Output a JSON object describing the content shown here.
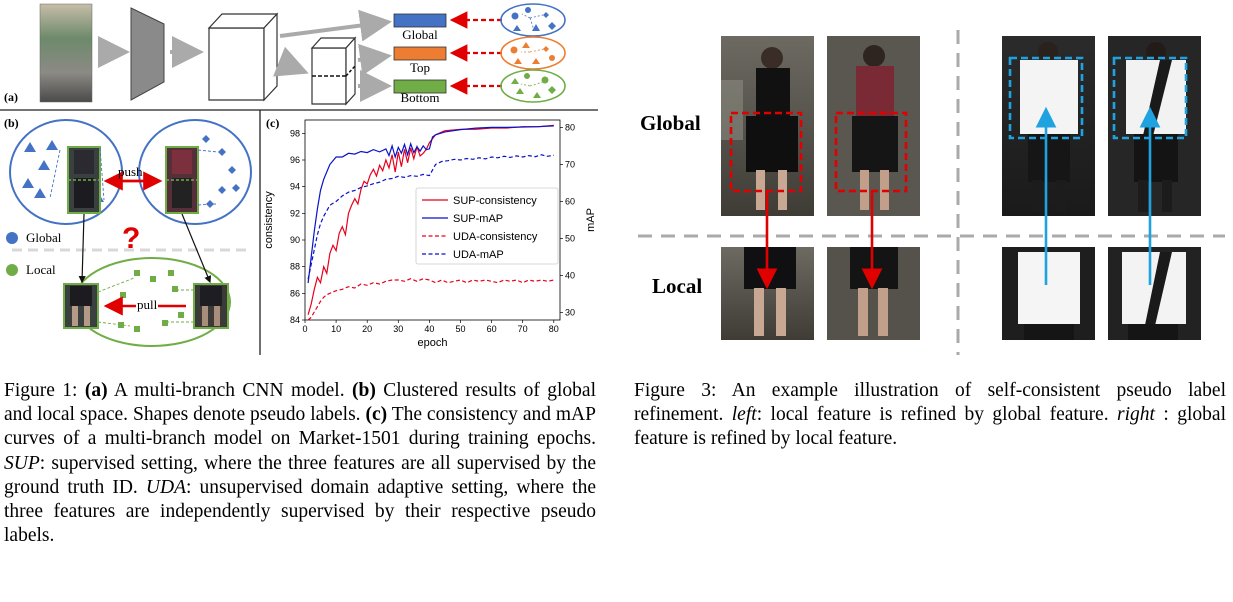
{
  "figure1": {
    "panel_a": {
      "tag": "(a)",
      "branches": [
        {
          "label": "Global",
          "color": "#4472c4"
        },
        {
          "label": "Top",
          "color": "#ed7d31"
        },
        {
          "label": "Bottom",
          "color": "#70ad47"
        }
      ]
    },
    "panel_b": {
      "tag": "(b)",
      "push_label": "push",
      "pull_label": "pull",
      "question_mark": "?",
      "legend": [
        {
          "label": "Global",
          "color": "#4472c4"
        },
        {
          "label": "Local",
          "color": "#70ad47"
        }
      ]
    },
    "panel_c": {
      "tag": "(c)"
    },
    "caption": {
      "lead": "Figure 1: ",
      "a_tag": "(a)",
      "a_text": " A multi-branch CNN model. ",
      "b_tag": "(b)",
      "b_text": " Clustered results of global and local space. Shapes denote pseudo labels. ",
      "c_tag": "(c)",
      "c_text": " The consistency and mAP curves of a multi-branch model on Market-1501 during training epochs. ",
      "sup_term": "SUP",
      "sup_text": ": supervised setting, where the three features are all supervised by the ground truth ID. ",
      "uda_term": "UDA",
      "uda_text": ": unsupervised domain adaptive setting, where the three features are independently supervised by their respective pseudo labels."
    }
  },
  "chart_data": {
    "type": "line",
    "xlabel": "epoch",
    "ylabel": "consistency",
    "y2label": "mAP",
    "xlim": [
      0,
      82
    ],
    "ylim": [
      84,
      99
    ],
    "y2lim": [
      28,
      82
    ],
    "xticks": [
      0,
      10,
      20,
      30,
      40,
      50,
      60,
      70,
      80
    ],
    "yticks": [
      84,
      86,
      88,
      90,
      92,
      94,
      96,
      98
    ],
    "y2ticks": [
      30,
      40,
      50,
      60,
      70,
      80
    ],
    "legend_position": "center-right",
    "grid": false,
    "series": [
      {
        "name": "SUP-consistency",
        "axis": "left",
        "color": "#e8001c",
        "dash": "solid",
        "x": [
          1,
          2,
          3,
          4,
          5,
          6,
          7,
          8,
          9,
          10,
          11,
          12,
          13,
          14,
          15,
          16,
          17,
          18,
          19,
          20,
          21,
          22,
          23,
          24,
          25,
          26,
          27,
          28,
          29,
          30,
          31,
          32,
          33,
          34,
          35,
          36,
          37,
          38,
          39,
          40,
          42,
          45,
          50,
          55,
          60,
          65,
          70,
          75,
          80
        ],
        "y": [
          84.4,
          85.2,
          86.3,
          87.2,
          86.8,
          88.0,
          87.5,
          89.0,
          89.6,
          89.2,
          90.5,
          91.0,
          90.4,
          92.0,
          92.6,
          93.1,
          92.7,
          93.8,
          94.4,
          94.2,
          94.9,
          95.3,
          94.8,
          95.6,
          95.2,
          96.0,
          95.4,
          96.4,
          95.1,
          96.6,
          95.5,
          96.8,
          95.8,
          96.9,
          96.1,
          97.0,
          96.3,
          96.5,
          96.8,
          97.3,
          97.9,
          98.2,
          98.3,
          98.3,
          98.4,
          98.4,
          98.5,
          98.5,
          98.6
        ]
      },
      {
        "name": "SUP-mAP",
        "axis": "right",
        "color": "#0a12c8",
        "dash": "solid",
        "x": [
          1,
          2,
          3,
          4,
          5,
          6,
          7,
          8,
          9,
          10,
          12,
          14,
          16,
          18,
          20,
          22,
          24,
          26,
          27,
          28,
          29,
          30,
          31,
          32,
          33,
          34,
          35,
          36,
          37,
          38,
          39,
          40,
          41,
          42,
          45,
          50,
          55,
          60,
          65,
          70,
          75,
          80
        ],
        "y": [
          38.0,
          45.0,
          52.0,
          58.0,
          63.0,
          66.0,
          68.0,
          70.0,
          71.0,
          72.0,
          72.0,
          73.0,
          72.8,
          73.5,
          73.2,
          74.0,
          73.4,
          74.2,
          72.4,
          75.0,
          72.0,
          74.6,
          73.0,
          75.4,
          72.6,
          75.6,
          73.2,
          74.8,
          73.6,
          75.0,
          74.0,
          74.2,
          77.4,
          78.0,
          78.8,
          79.4,
          79.8,
          80.0,
          80.0,
          80.1,
          80.2,
          80.4
        ]
      },
      {
        "name": "UDA-consistency",
        "axis": "left",
        "color": "#e8001c",
        "dash": "dashed",
        "x": [
          1,
          2,
          3,
          4,
          5,
          6,
          7,
          8,
          9,
          10,
          12,
          14,
          16,
          18,
          20,
          22,
          24,
          26,
          28,
          30,
          32,
          34,
          36,
          38,
          40,
          42,
          44,
          46,
          48,
          50,
          52,
          54,
          56,
          58,
          60,
          62,
          64,
          66,
          68,
          70,
          72,
          74,
          76,
          78,
          80
        ],
        "y": [
          84.0,
          84.2,
          84.6,
          85.0,
          85.4,
          85.7,
          85.9,
          86.0,
          86.1,
          86.2,
          86.3,
          86.5,
          86.4,
          86.7,
          86.6,
          86.8,
          86.7,
          86.9,
          87.0,
          87.0,
          86.9,
          87.1,
          86.9,
          87.1,
          87.0,
          86.8,
          87.0,
          86.8,
          86.9,
          87.0,
          86.8,
          87.0,
          86.9,
          87.0,
          86.9,
          86.8,
          87.0,
          86.9,
          87.0,
          86.8,
          87.0,
          86.9,
          87.0,
          86.9,
          87.0
        ]
      },
      {
        "name": "UDA-mAP",
        "axis": "right",
        "color": "#0a12c8",
        "dash": "dashed",
        "x": [
          1,
          2,
          3,
          4,
          5,
          6,
          7,
          8,
          9,
          10,
          12,
          14,
          16,
          18,
          20,
          22,
          24,
          26,
          28,
          30,
          32,
          34,
          36,
          38,
          40,
          42,
          44,
          46,
          48,
          50,
          52,
          54,
          56,
          58,
          60,
          62,
          64,
          66,
          68,
          70,
          72,
          74,
          76,
          78,
          80
        ],
        "y": [
          39.0,
          43.0,
          47.0,
          51.0,
          54.0,
          56.0,
          57.5,
          59.0,
          59.5,
          60.0,
          61.5,
          62.5,
          63.0,
          63.8,
          64.2,
          64.8,
          65.2,
          66.0,
          66.2,
          66.8,
          66.5,
          67.0,
          66.8,
          67.3,
          67.0,
          70.0,
          70.8,
          71.0,
          71.4,
          71.2,
          71.6,
          71.4,
          71.8,
          71.5,
          72.0,
          71.8,
          72.2,
          71.9,
          72.3,
          72.0,
          72.4,
          72.1,
          72.6,
          72.2,
          72.5
        ]
      }
    ]
  },
  "figure3": {
    "row_labels": {
      "global": "Global",
      "local": "Local"
    },
    "caption": {
      "lead": "Figure 3: An example illustration of self-consistent pseudo label refinement. ",
      "left_term": "left",
      "left_text": ": local feature is refined by global feature. ",
      "right_term": "right",
      "right_text": " : global feature is refined by local feature."
    }
  }
}
